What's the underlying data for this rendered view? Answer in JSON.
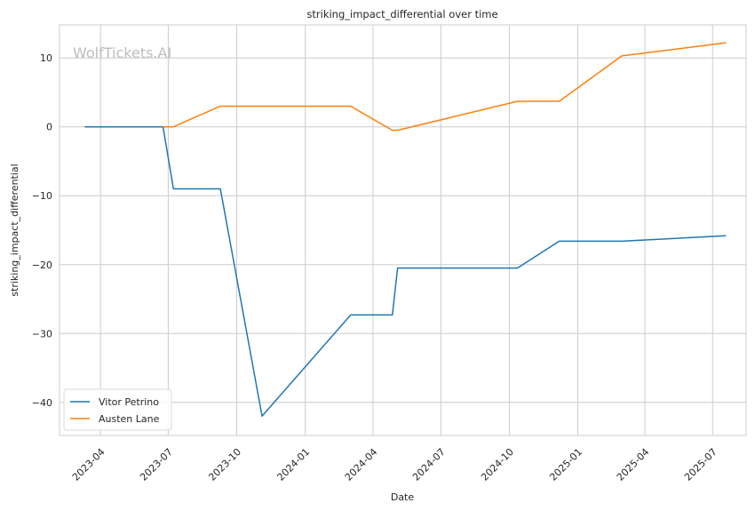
{
  "chart_data": {
    "type": "line",
    "title": "striking_impact_differential over time",
    "xlabel": "Date",
    "ylabel": "striking_impact_differential",
    "watermark": "WolfTickets.AI",
    "grid": true,
    "legend_position": "lower-left",
    "x_range": [
      "2023-02-05",
      "2025-08-15"
    ],
    "ylim": [
      -44.8,
      14.8
    ],
    "x_ticks": [
      "2023-04",
      "2023-07",
      "2023-10",
      "2024-01",
      "2024-04",
      "2024-07",
      "2024-10",
      "2025-01",
      "2025-04",
      "2025-07"
    ],
    "y_ticks": [
      10,
      0,
      -10,
      -20,
      -30,
      -40
    ],
    "y_tick_labels": [
      "10",
      "0",
      "−10",
      "−20",
      "−30",
      "−40"
    ],
    "series": [
      {
        "name": "Vitor Petrino",
        "color": "#1f77b4",
        "x": [
          "2023-03-11",
          "2023-06-24",
          "2023-07-08",
          "2023-09-09",
          "2023-11-04",
          "2024-03-02",
          "2024-04-27",
          "2024-05-04",
          "2024-10-12",
          "2024-12-07",
          "2025-03-01",
          "2025-07-19"
        ],
        "y": [
          0,
          0,
          -9,
          -9,
          -42,
          -27.3,
          -27.3,
          -20.5,
          -20.5,
          -16.6,
          -16.6,
          -15.8
        ]
      },
      {
        "name": "Austen Lane",
        "color": "#ff7f0e",
        "x": [
          "2023-06-24",
          "2023-07-08",
          "2023-09-09",
          "2024-03-02",
          "2024-04-27",
          "2024-05-04",
          "2024-10-12",
          "2024-12-07",
          "2025-03-01",
          "2025-07-19"
        ],
        "y": [
          0,
          0,
          3,
          3,
          -0.5,
          -0.5,
          3.7,
          3.7,
          10.3,
          12.2
        ]
      }
    ]
  }
}
